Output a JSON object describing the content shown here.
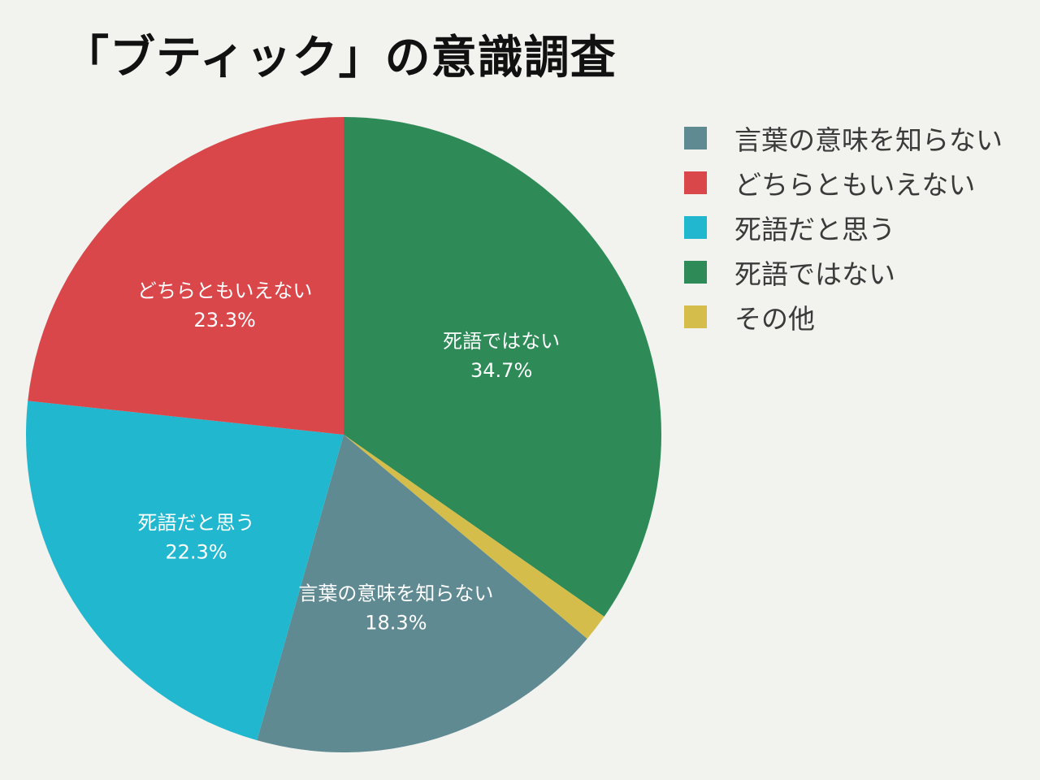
{
  "chart_data": {
    "type": "pie",
    "title": "「ブティック」の意識調査",
    "start_angle_deg": 0,
    "direction": "clockwise",
    "legend_position": "right",
    "slices": [
      {
        "label": "死語ではない",
        "value": 34.7,
        "value_label": "34.7%",
        "color": "#2e8b57"
      },
      {
        "label": "その他",
        "value": 1.4,
        "value_label": "",
        "color": "#d4bd4a"
      },
      {
        "label": "言葉の意味を知らない",
        "value": 18.3,
        "value_label": "18.3%",
        "color": "#5f8a92"
      },
      {
        "label": "死語だと思う",
        "value": 22.3,
        "value_label": "22.3%",
        "color": "#21b8cf"
      },
      {
        "label": "どちらともいえない",
        "value": 23.3,
        "value_label": "23.3%",
        "color": "#d9474a"
      }
    ],
    "legend": [
      {
        "label": "言葉の意味を知らない",
        "color": "#5f8a92"
      },
      {
        "label": "どちらともいえない",
        "color": "#d9474a"
      },
      {
        "label": "死語だと思う",
        "color": "#21b8cf"
      },
      {
        "label": "死語ではない",
        "color": "#2e8b57"
      },
      {
        "label": "その他",
        "color": "#d4bd4a"
      }
    ]
  }
}
